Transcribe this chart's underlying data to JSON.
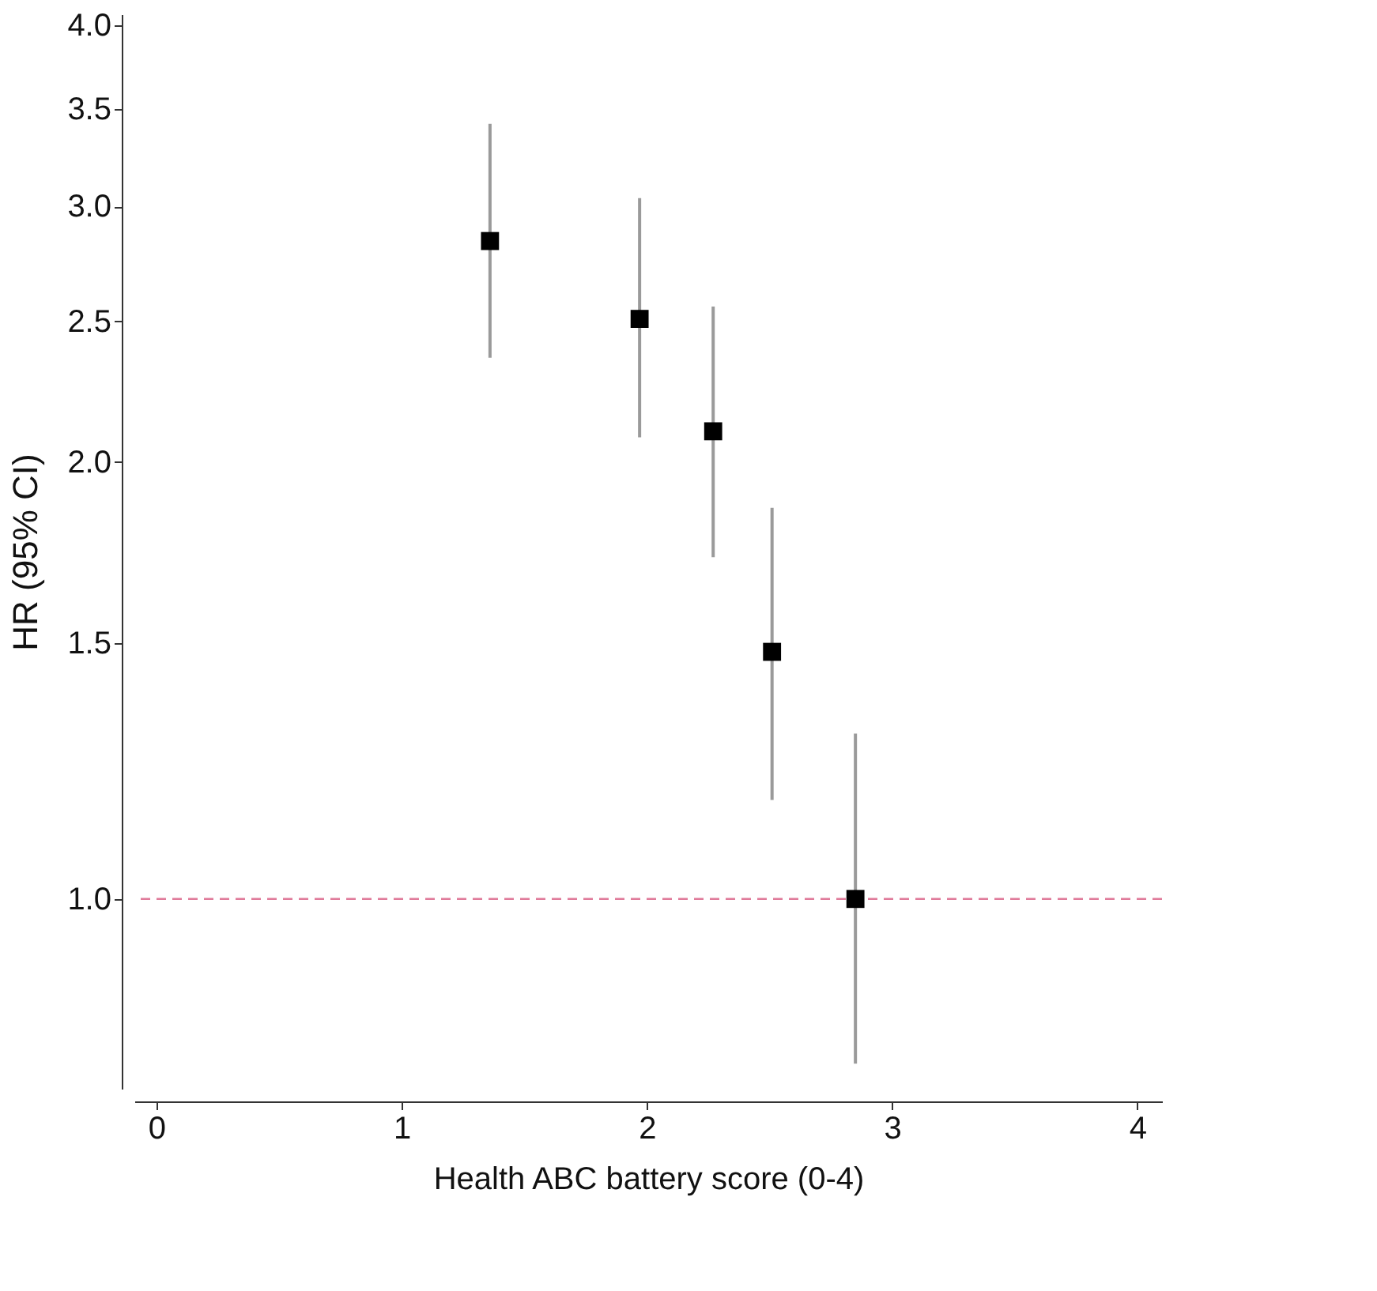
{
  "chart_data": {
    "type": "scatter",
    "xlabel": "Health ABC battery score (0-4)",
    "ylabel": "HR (95% CI)",
    "x": [
      1.36,
      1.97,
      2.27,
      2.51,
      2.85
    ],
    "values": [
      2.84,
      2.51,
      2.1,
      1.48,
      1.0
    ],
    "errors": [
      [
        2.36,
        3.42
      ],
      [
        2.08,
        3.04
      ],
      [
        1.72,
        2.56
      ],
      [
        1.17,
        1.86
      ],
      [
        0.77,
        1.3
      ]
    ],
    "color": "#000000",
    "marker": "square",
    "log": "y",
    "grid": false,
    "xlim": [
      -0.09,
      4.1
    ],
    "xticks": [
      0,
      1,
      2,
      3,
      4
    ],
    "ylim": [
      0.74,
      4.07
    ],
    "yticks": [
      {
        "value": 1,
        "label": "1.0"
      },
      {
        "value": 1.5,
        "label": "1.5"
      },
      {
        "value": 2,
        "label": "2.0"
      },
      {
        "value": 2.5,
        "label": "2.5"
      },
      {
        "value": 3,
        "label": "3.0"
      },
      {
        "value": 3.5,
        "label": "3.5"
      },
      {
        "value": 4,
        "label": "4.0"
      }
    ],
    "ref_lines": [
      {
        "axis": "y",
        "value": 1,
        "color": "#e07a9a",
        "line_style": "dashed"
      }
    ]
  }
}
